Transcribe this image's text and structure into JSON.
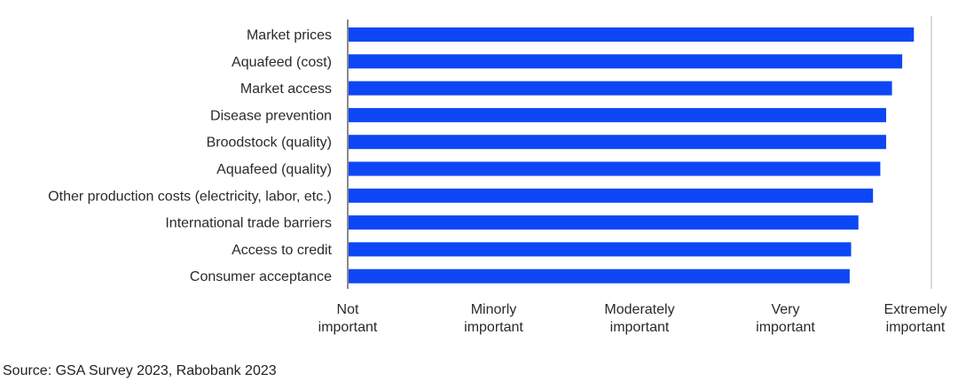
{
  "chart_data": {
    "type": "bar",
    "orientation": "horizontal",
    "categories": [
      "Market prices",
      "Aquafeed (cost)",
      "Market access",
      "Disease prevention",
      "Broodstock (quality)",
      "Aquafeed (quality)",
      "Other production costs (electricity, labor, etc.)",
      "International trade barriers",
      "Access to credit",
      "Consumer acceptance"
    ],
    "values": [
      4.88,
      4.8,
      4.73,
      4.69,
      4.69,
      4.65,
      4.6,
      4.5,
      4.45,
      4.44
    ],
    "xlim": [
      1,
      5
    ],
    "xticks": [
      {
        "value": 1,
        "lines": [
          "Not",
          "important"
        ]
      },
      {
        "value": 2,
        "lines": [
          "Minorly",
          "important"
        ]
      },
      {
        "value": 3,
        "lines": [
          "Moderately",
          "important"
        ]
      },
      {
        "value": 4,
        "lines": [
          "Very",
          "important"
        ]
      },
      {
        "value": 5,
        "lines": [
          "Extremely",
          "important"
        ]
      }
    ],
    "bar_color": "#0d47f5",
    "axis_color": "#8a8a8a",
    "gridline_color": "#d9d9d9",
    "grid": "vertical-right",
    "title": "",
    "xlabel": "",
    "ylabel": ""
  },
  "source": "Source: GSA Survey 2023, Rabobank 2023"
}
